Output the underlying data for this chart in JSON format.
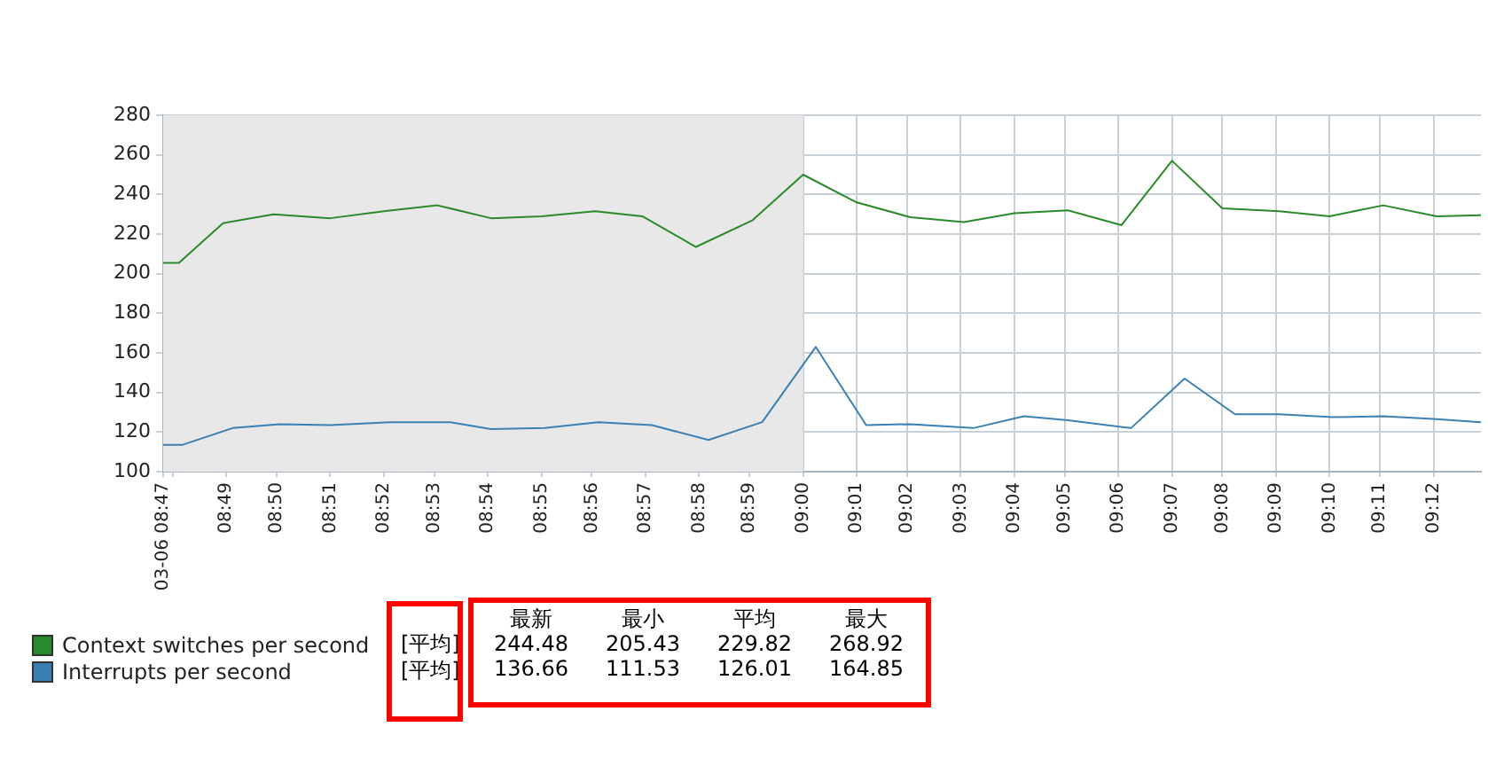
{
  "chart_data": {
    "type": "line",
    "xlim": [
      8.797,
      9.215
    ],
    "xticks": [
      {
        "value": 8.797,
        "label": "03-06 08:47"
      },
      {
        "value": 8.8,
        "label": null
      },
      {
        "value": 8.817,
        "label": "08:49"
      },
      {
        "value": 8.833,
        "label": "08:50"
      },
      {
        "value": 8.85,
        "label": "08:51"
      },
      {
        "value": 8.867,
        "label": "08:52"
      },
      {
        "value": 8.883,
        "label": "08:53"
      },
      {
        "value": 8.9,
        "label": "08:54"
      },
      {
        "value": 8.917,
        "label": "08:55"
      },
      {
        "value": 8.933,
        "label": "08:56"
      },
      {
        "value": 8.95,
        "label": "08:57"
      },
      {
        "value": 8.967,
        "label": "08:58"
      },
      {
        "value": 8.983,
        "label": "08:59"
      },
      {
        "value": 9,
        "label": "09:00"
      },
      {
        "value": 9.017,
        "label": "09:01"
      },
      {
        "value": 9.033,
        "label": "09:02"
      },
      {
        "value": 9.05,
        "label": "09:03"
      },
      {
        "value": 9.067,
        "label": "09:04"
      },
      {
        "value": 9.083,
        "label": "09:05"
      },
      {
        "value": 9.1,
        "label": "09:06"
      },
      {
        "value": 9.117,
        "label": "09:07"
      },
      {
        "value": 9.133,
        "label": "09:08"
      },
      {
        "value": 9.15,
        "label": "09:09"
      },
      {
        "value": 9.167,
        "label": "09:10"
      },
      {
        "value": 9.183,
        "label": "09:11"
      },
      {
        "value": 9.2,
        "label": "09:12"
      }
    ],
    "ylim": [
      100,
      280
    ],
    "yticks": [
      100,
      120,
      140,
      160,
      180,
      200,
      220,
      240,
      260,
      280
    ],
    "grid": true,
    "legend": "bottom left",
    "marker": "none",
    "line_style": "solid",
    "bands": [
      {
        "axis": "x",
        "from": 8.797,
        "to": 9,
        "color": "#e8e8e8"
      }
    ],
    "series": [
      {
        "name": "Context switches per second",
        "color": "#2a8a2a",
        "x": [
          8.797,
          8.802,
          8.816,
          8.832,
          8.85,
          8.867,
          8.884,
          8.901,
          8.917,
          8.934,
          8.949,
          8.966,
          8.984,
          9,
          9.017,
          9.034,
          9.051,
          9.067,
          9.084,
          9.101,
          9.117,
          9.133,
          9.151,
          9.167,
          9.184,
          9.201,
          9.215
        ],
        "values": [
          205.5,
          205.5,
          225.5,
          230,
          228,
          231.5,
          234.5,
          228,
          229,
          231.5,
          229,
          213.5,
          227,
          250,
          236,
          228.5,
          226,
          230.5,
          232,
          224.5,
          257,
          233,
          231.5,
          229,
          234.5,
          229,
          229.5
        ]
      },
      {
        "name": "Interrupts per second",
        "color": "#3a80b4",
        "x": [
          8.797,
          8.803,
          8.819,
          8.834,
          8.85,
          8.869,
          8.888,
          8.901,
          8.918,
          8.935,
          8.952,
          8.97,
          8.987,
          9.004,
          9.02,
          9.034,
          9.054,
          9.07,
          9.084,
          9.104,
          9.121,
          9.137,
          9.151,
          9.168,
          9.184,
          9.201,
          9.215
        ],
        "values": [
          113.5,
          113.5,
          122,
          124,
          123.5,
          125,
          125,
          121.5,
          122,
          125,
          123.5,
          116,
          125,
          163,
          123.5,
          124,
          122,
          128,
          126,
          122,
          147,
          129,
          129,
          127.5,
          128,
          126.5,
          125
        ]
      }
    ],
    "annotations": [
      "[平均]",
      "[平均]",
      "最新",
      "最小",
      "平均",
      "最大",
      "244.48",
      "205.43",
      "229.82",
      "268.92",
      "136.66",
      "111.53",
      "126.01",
      "164.85"
    ]
  }
}
